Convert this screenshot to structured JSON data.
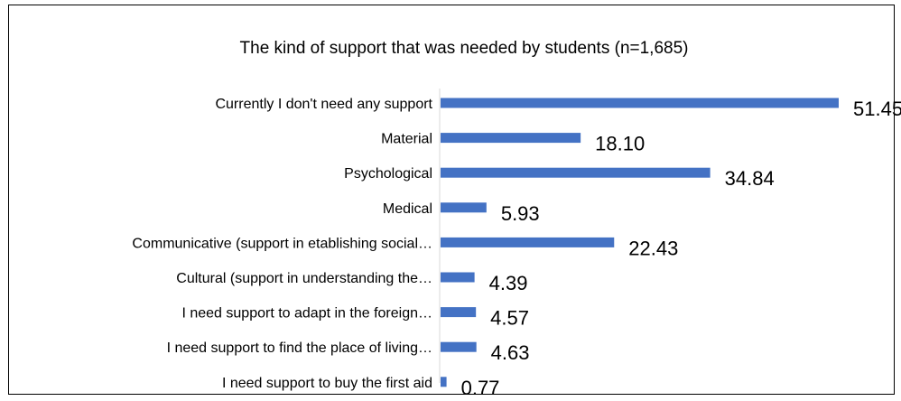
{
  "chart_data": {
    "type": "bar",
    "orientation": "horizontal",
    "title": "The kind of support that was needed by students (n=1,685)",
    "categories": [
      "Currently I don't need any support",
      "Material",
      "Psychological",
      "Medical",
      "Communicative (support in etablishing social…",
      "Cultural (support in understanding the…",
      "I need support to adapt in the foreign…",
      "I need support to find the place of living…",
      "I need support to buy the first aid"
    ],
    "values": [
      51.45,
      18.1,
      34.84,
      5.93,
      22.43,
      4.39,
      4.57,
      4.63,
      0.77
    ],
    "value_labels": [
      "51.45",
      "18.10",
      "34.84",
      "5.93",
      "22.43",
      "4.39",
      "4.57",
      "4.63",
      "0.77"
    ],
    "xlim": [
      0,
      51.45
    ],
    "grid": false,
    "legend": "none",
    "bar_color": "#4472C4",
    "axis_color": "#D9D9D9"
  }
}
